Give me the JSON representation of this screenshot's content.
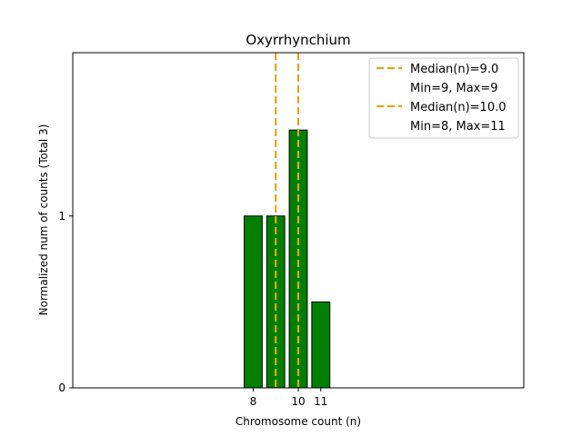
{
  "chart_data": {
    "type": "bar",
    "title": "Oxyrrhynchium",
    "xlabel": "Chromosome count (n)",
    "ylabel": "Normalized num of counts     (Total 3)",
    "xlim": [
      0,
      20
    ],
    "ylim": [
      0,
      1.95
    ],
    "x_ticks": [
      8,
      10,
      11
    ],
    "y_ticks": [
      0,
      1
    ],
    "bar_color": "#008000",
    "bar_edge_color": "#000000",
    "bars": [
      {
        "x": 8,
        "value": 1.0
      },
      {
        "x": 9,
        "value": 1.0
      },
      {
        "x": 10,
        "value": 1.5
      },
      {
        "x": 11,
        "value": 0.5
      }
    ],
    "median_lines": [
      {
        "x": 9.0,
        "color": "#e8a317",
        "label": "Median(n)=9.0",
        "sublabel": "Min=9, Max=9"
      },
      {
        "x": 10.0,
        "color": "#e8a317",
        "label": "Median(n)=10.0",
        "sublabel": "Min=8, Max=11"
      }
    ],
    "legend_position": "top-right",
    "grid": false
  }
}
